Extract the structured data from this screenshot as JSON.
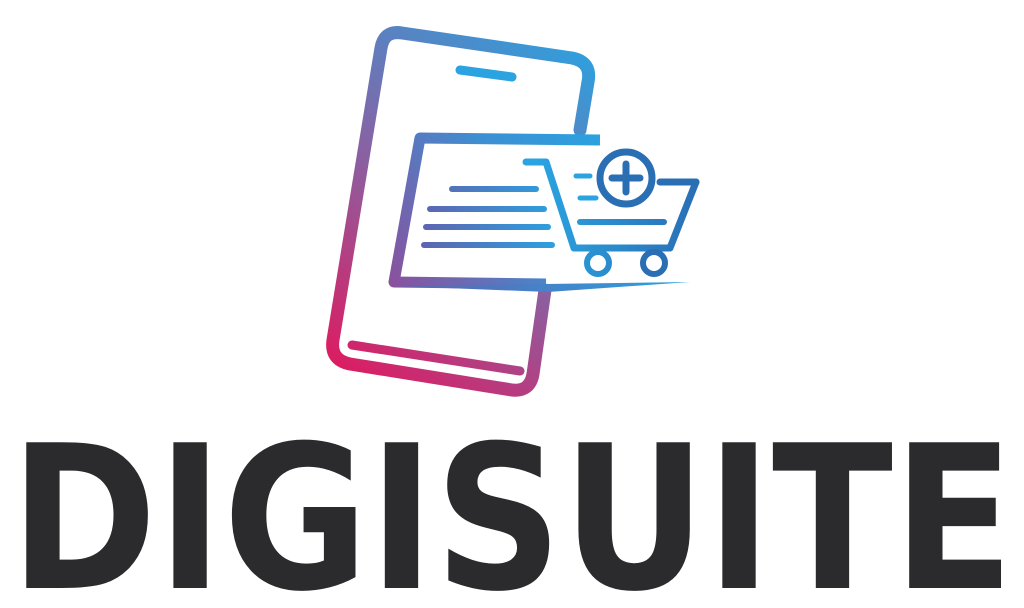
{
  "brand": {
    "name": "DIGISUITE",
    "colors": {
      "wordmark": "#2b2b2d",
      "gradient_start": "#e0195f",
      "gradient_mid": "#8c5fa0",
      "gradient_end": "#2aa3e0",
      "cart": "#2a6eb4"
    },
    "icons": [
      "smartphone-icon",
      "document-icon",
      "shopping-cart-icon",
      "plus-circle-icon"
    ]
  }
}
